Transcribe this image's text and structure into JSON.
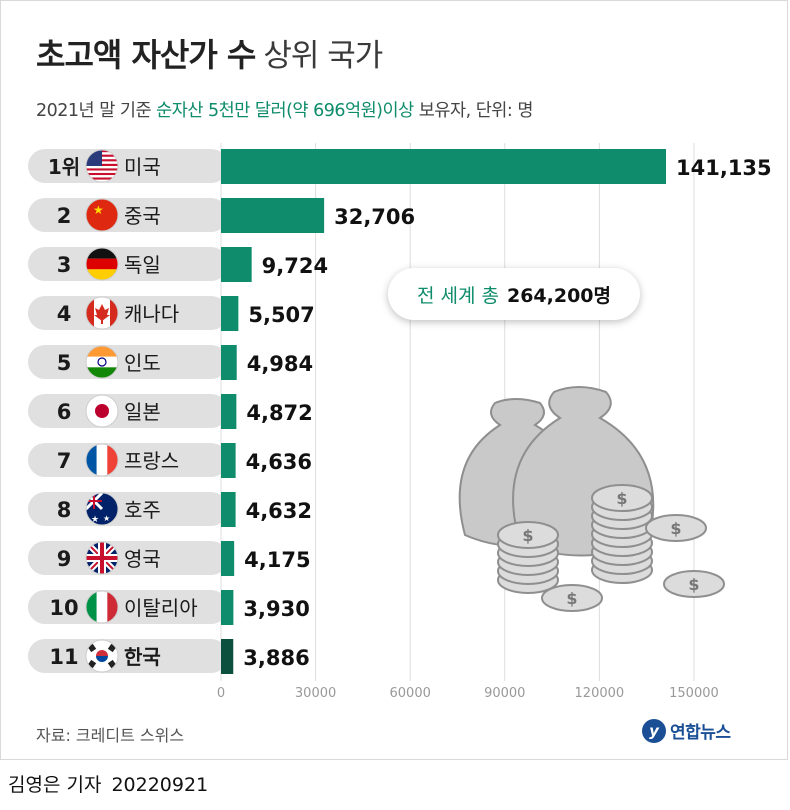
{
  "header": {
    "title_bold": "초고액 자산가 수",
    "title_light": "상위 국가",
    "subtitle_pre": "2021년 말 기준 ",
    "subtitle_accent": "순자산 5천만 달러(약 696억원)이상",
    "subtitle_post": " 보유자, 단위: 명"
  },
  "annotation": {
    "label": "전 세계 총",
    "value": "264,200명"
  },
  "footer": {
    "source": "자료: 크레디트 스위스",
    "logo_mark": "y",
    "logo_text": "연합뉴스",
    "reporter": "김영은 기자",
    "date": "20220921"
  },
  "colors": {
    "bar": "#0e8c6b",
    "bar_highlight": "#0b4f3e",
    "label_bg": "#e0e0e0",
    "accent": "#0e8c6b"
  },
  "chart_data": {
    "type": "bar",
    "orientation": "horizontal",
    "rank_labels": [
      "1위",
      "2",
      "3",
      "4",
      "5",
      "6",
      "7",
      "8",
      "9",
      "10",
      "11"
    ],
    "categories": [
      "미국",
      "중국",
      "독일",
      "캐나다",
      "인도",
      "일본",
      "프랑스",
      "호주",
      "영국",
      "이탈리아",
      "한국"
    ],
    "flags": [
      "us",
      "cn",
      "de",
      "ca",
      "in",
      "jp",
      "fr",
      "au",
      "gb",
      "it",
      "kr"
    ],
    "values": [
      141135,
      32706,
      9724,
      5507,
      4984,
      4872,
      4636,
      4632,
      4175,
      3930,
      3886
    ],
    "value_labels": [
      "141,135",
      "32,706",
      "9,724",
      "5,507",
      "4,984",
      "4,872",
      "4,636",
      "4,632",
      "4,175",
      "3,930",
      "3,886"
    ],
    "highlight": "한국",
    "xticks": [
      0,
      30000,
      60000,
      90000,
      120000,
      150000
    ],
    "xlim": [
      0,
      150000
    ],
    "grid": true
  }
}
